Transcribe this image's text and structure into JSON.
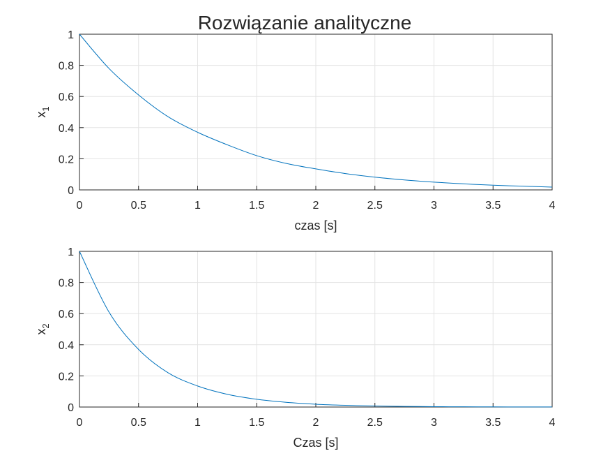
{
  "figure": {
    "title": "Rozwiązanie analityczne"
  },
  "chart_data": [
    {
      "type": "line",
      "ylabel_base": "x",
      "ylabel_sub": "1",
      "xlabel": "czas [s]",
      "xlim": [
        0,
        4
      ],
      "ylim": [
        0,
        1
      ],
      "xticks": [
        "0",
        "0.5",
        "1",
        "1.5",
        "2",
        "2.5",
        "3",
        "3.5",
        "4"
      ],
      "yticks": [
        "0",
        "0.2",
        "0.4",
        "0.6",
        "0.8",
        "1"
      ],
      "grid": true,
      "line_color": "#0072BD",
      "series": [
        {
          "x": [
            0,
            0.25,
            0.5,
            0.75,
            1,
            1.25,
            1.5,
            1.75,
            2,
            2.25,
            2.5,
            2.75,
            3,
            3.25,
            3.5,
            3.75,
            4
          ],
          "values": [
            1,
            0.78,
            0.61,
            0.47,
            0.37,
            0.29,
            0.22,
            0.17,
            0.135,
            0.105,
            0.082,
            0.064,
            0.05,
            0.039,
            0.03,
            0.024,
            0.018
          ]
        }
      ]
    },
    {
      "type": "line",
      "ylabel_base": "x",
      "ylabel_sub": "2",
      "xlabel": "Czas [s]",
      "xlim": [
        0,
        4
      ],
      "ylim": [
        0,
        1
      ],
      "xticks": [
        "0",
        "0.5",
        "1",
        "1.5",
        "2",
        "2.5",
        "3",
        "3.5",
        "4"
      ],
      "yticks": [
        "0",
        "0.2",
        "0.4",
        "0.6",
        "0.8",
        "1"
      ],
      "grid": true,
      "line_color": "#0072BD",
      "series": [
        {
          "x": [
            0,
            0.25,
            0.5,
            0.75,
            1,
            1.25,
            1.5,
            1.75,
            2,
            2.25,
            2.5,
            2.75,
            3,
            3.25,
            3.5,
            3.75,
            4
          ],
          "values": [
            1,
            0.61,
            0.37,
            0.22,
            0.135,
            0.082,
            0.05,
            0.03,
            0.018,
            0.011,
            0.0067,
            0.0041,
            0.0025,
            0.0015,
            0.0009,
            0.0006,
            0.0003
          ]
        }
      ]
    }
  ]
}
